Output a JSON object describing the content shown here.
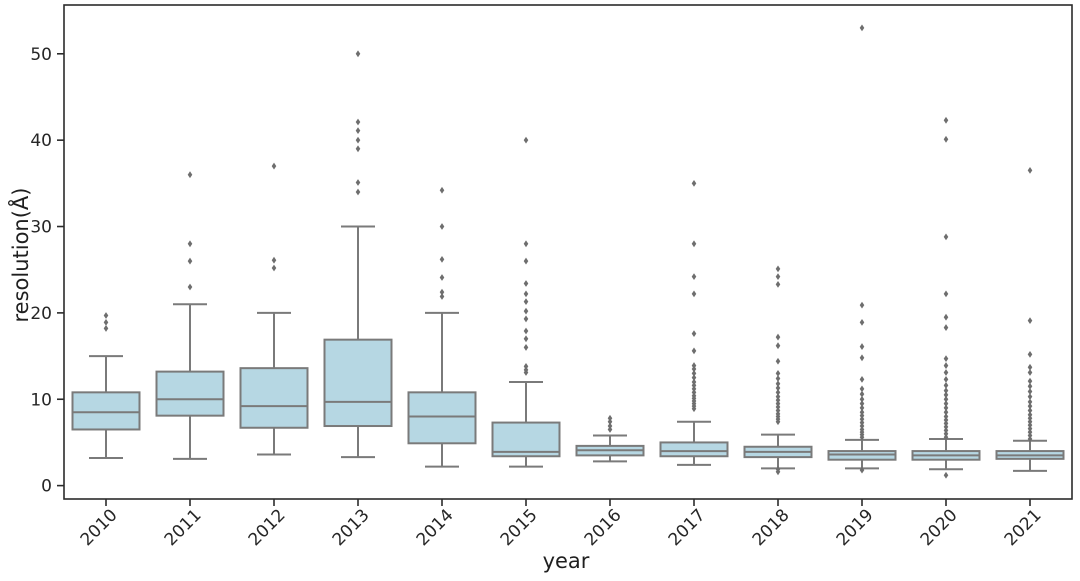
{
  "chart_data": {
    "type": "boxplot",
    "title": "",
    "xlabel": "year",
    "ylabel": "resolution(Å)",
    "categories": [
      "2010",
      "2011",
      "2012",
      "2013",
      "2014",
      "2015",
      "2016",
      "2017",
      "2018",
      "2019",
      "2020",
      "2021"
    ],
    "y_ticks": [
      0,
      10,
      20,
      30,
      40,
      50
    ],
    "ylim": [
      -1.55,
      55.65
    ],
    "grid": false,
    "legend": "none",
    "colors": {
      "box_fill": "#b6d7e3",
      "line": "#7a7a7a",
      "outlier": "#6e6e6e",
      "spine": "#2b2b2b",
      "text": "#262626"
    },
    "boxes": [
      {
        "category": "2010",
        "whisker_low": 3.2,
        "q1": 6.5,
        "median": 8.5,
        "q3": 10.8,
        "whisker_high": 15.0,
        "outliers": [
          18.2,
          18.9,
          19.7
        ]
      },
      {
        "category": "2011",
        "whisker_low": 3.1,
        "q1": 8.1,
        "median": 10.0,
        "q3": 13.2,
        "whisker_high": 21.0,
        "outliers": [
          23.0,
          26.0,
          28.0,
          36.0
        ]
      },
      {
        "category": "2012",
        "whisker_low": 3.6,
        "q1": 6.7,
        "median": 9.2,
        "q3": 13.6,
        "whisker_high": 20.0,
        "outliers": [
          25.2,
          26.1,
          37.0
        ]
      },
      {
        "category": "2013",
        "whisker_low": 3.3,
        "q1": 6.9,
        "median": 9.7,
        "q3": 16.9,
        "whisker_high": 30.0,
        "outliers": [
          34.0,
          35.1,
          39.0,
          40.0,
          41.1,
          42.1,
          50.0
        ]
      },
      {
        "category": "2014",
        "whisker_low": 2.2,
        "q1": 4.9,
        "median": 8.0,
        "q3": 10.8,
        "whisker_high": 20.0,
        "outliers": [
          21.9,
          22.4,
          24.1,
          26.2,
          30.0,
          34.2
        ]
      },
      {
        "category": "2015",
        "whisker_low": 2.2,
        "q1": 3.4,
        "median": 3.9,
        "q3": 7.3,
        "whisker_high": 12.0,
        "outliers": [
          13.1,
          13.4,
          13.8,
          16.0,
          17.0,
          17.9,
          19.3,
          20.2,
          21.3,
          22.2,
          23.4,
          26.0,
          28.0,
          40.0
        ]
      },
      {
        "category": "2016",
        "whisker_low": 2.8,
        "q1": 3.5,
        "median": 4.1,
        "q3": 4.6,
        "whisker_high": 5.8,
        "outliers": [
          6.5,
          6.9,
          7.4,
          7.8
        ]
      },
      {
        "category": "2017",
        "whisker_low": 2.4,
        "q1": 3.4,
        "median": 4.0,
        "q3": 5.0,
        "whisker_high": 7.4,
        "outliers": [
          8.9,
          9.2,
          9.5,
          9.8,
          10.1,
          10.4,
          10.8,
          11.2,
          11.6,
          12.0,
          12.5,
          13.0,
          13.5,
          13.9,
          15.6,
          17.6,
          22.2,
          24.2,
          28.0,
          35.0
        ]
      },
      {
        "category": "2018",
        "whisker_low": 2.0,
        "q1": 3.3,
        "median": 3.9,
        "q3": 4.5,
        "whisker_high": 5.9,
        "outliers": [
          1.6,
          1.9,
          7.4,
          7.7,
          8.0,
          8.3,
          8.7,
          9.1,
          9.5,
          9.9,
          10.3,
          10.8,
          11.3,
          11.8,
          12.4,
          13.0,
          14.4,
          16.2,
          17.2,
          23.3,
          24.2,
          25.1
        ]
      },
      {
        "category": "2019",
        "whisker_low": 2.0,
        "q1": 3.0,
        "median": 3.6,
        "q3": 4.0,
        "whisker_high": 5.3,
        "outliers": [
          1.8,
          5.6,
          5.9,
          6.2,
          6.5,
          6.9,
          7.3,
          7.7,
          8.1,
          8.5,
          9.0,
          9.5,
          10.0,
          10.6,
          11.2,
          12.3,
          14.8,
          16.1,
          18.9,
          20.9,
          53.0
        ]
      },
      {
        "category": "2020",
        "whisker_low": 1.9,
        "q1": 3.0,
        "median": 3.5,
        "q3": 4.0,
        "whisker_high": 5.4,
        "outliers": [
          1.2,
          5.6,
          6.0,
          6.4,
          6.8,
          7.2,
          7.6,
          8.0,
          8.5,
          9.0,
          9.5,
          10.0,
          10.5,
          11.0,
          11.6,
          12.3,
          13.1,
          13.9,
          14.7,
          18.3,
          19.5,
          22.2,
          28.8,
          40.1,
          42.3
        ]
      },
      {
        "category": "2021",
        "whisker_low": 1.7,
        "q1": 3.1,
        "median": 3.5,
        "q3": 4.0,
        "whisker_high": 5.2,
        "outliers": [
          5.4,
          5.8,
          6.2,
          6.6,
          7.0,
          7.4,
          7.8,
          8.2,
          8.7,
          9.2,
          9.7,
          10.3,
          10.9,
          11.5,
          12.1,
          13.1,
          13.7,
          15.2,
          19.1,
          36.5
        ]
      }
    ]
  }
}
